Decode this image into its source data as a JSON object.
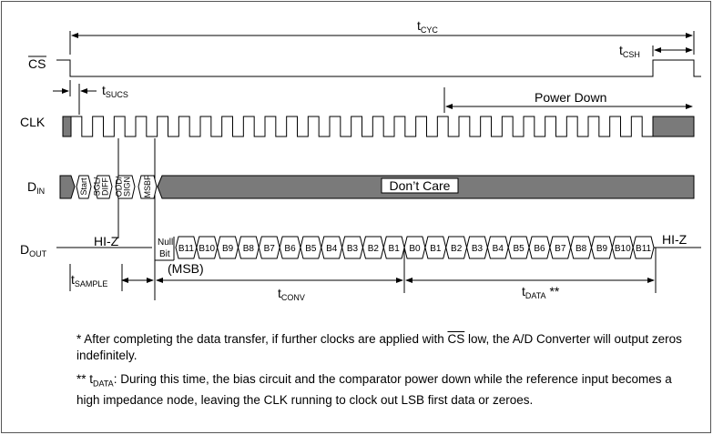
{
  "timing": {
    "t_cyc": {
      "base": "t",
      "sub": "CYC"
    },
    "t_csh": {
      "base": "t",
      "sub": "CSH"
    },
    "t_sucs": {
      "base": "t",
      "sub": "SUCS"
    },
    "t_sample": {
      "base": "t",
      "sub": "SAMPLE"
    },
    "t_conv": {
      "base": "t",
      "sub": "CONV"
    },
    "t_data": {
      "base": "t",
      "sub": "DATA",
      "suffix": " **"
    },
    "power_down": "Power Down"
  },
  "signals": {
    "cs": "CS",
    "clk": "CLK",
    "din": {
      "base": "D",
      "sub": "IN"
    },
    "dout": {
      "base": "D",
      "sub": "OUT"
    }
  },
  "din_bits": [
    "Start",
    "SGL/DIFF",
    "ODD/SIGN",
    "MSBF"
  ],
  "dont_care": "Don’t Care",
  "dout": {
    "hiz_left": "HI-Z",
    "hiz_right": "HI-Z",
    "null_bit": [
      "Null",
      "Bit"
    ],
    "msb": "(MSB)",
    "msb_bits": [
      "B11",
      "B10",
      "B9",
      "B8",
      "B7",
      "B6",
      "B5",
      "B4",
      "B3",
      "B2",
      "B1",
      "B0"
    ],
    "lsb_bits": [
      "B1",
      "B2",
      "B3",
      "B4",
      "B5",
      "B6",
      "B7",
      "B8",
      "B9",
      "B10",
      "B11"
    ]
  },
  "notes": {
    "note1_pre": "* After completing the data transfer, if further clocks are applied with ",
    "note1_cs": "CS",
    "note1_post": " low, the A/D Converter will output zeros indefinitely.",
    "note2_star": "** t",
    "note2_sub": "DATA",
    "note2_text": ": During this time, the bias circuit and the comparator power down while the reference input becomes a high impedance node, leaving the CLK running to clock out LSB first data or zeroes."
  },
  "colors": {
    "gray": "#7a7a7a",
    "line": "#000000"
  }
}
